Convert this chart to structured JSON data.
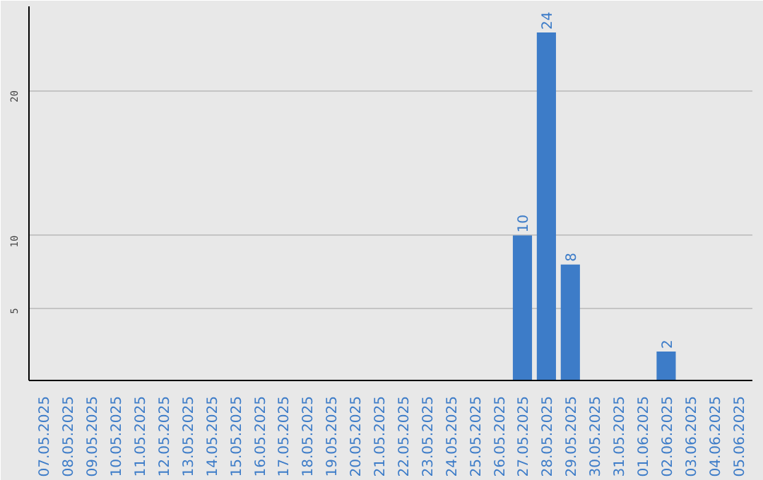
{
  "chart_data": {
    "type": "bar",
    "categories": [
      "07.05.2025",
      "08.05.2025",
      "09.05.2025",
      "10.05.2025",
      "11.05.2025",
      "12.05.2025",
      "13.05.2025",
      "14.05.2025",
      "15.05.2025",
      "16.05.2025",
      "17.05.2025",
      "18.05.2025",
      "19.05.2025",
      "20.05.2025",
      "21.05.2025",
      "22.05.2025",
      "23.05.2025",
      "24.05.2025",
      "25.05.2025",
      "26.05.2025",
      "27.05.2025",
      "28.05.2025",
      "29.05.2025",
      "30.05.2025",
      "31.05.2025",
      "01.06.2025",
      "02.06.2025",
      "03.06.2025",
      "04.06.2025",
      "05.06.2025"
    ],
    "values": [
      0,
      0,
      0,
      0,
      0,
      0,
      0,
      0,
      0,
      0,
      0,
      0,
      0,
      0,
      0,
      0,
      0,
      0,
      0,
      0,
      10,
      24,
      8,
      0,
      0,
      0,
      2,
      0,
      0,
      0
    ],
    "value_labels": [
      null,
      null,
      null,
      null,
      null,
      null,
      null,
      null,
      null,
      null,
      null,
      null,
      null,
      null,
      null,
      null,
      null,
      null,
      null,
      null,
      "10",
      "24",
      "8",
      null,
      null,
      null,
      "2",
      null,
      null,
      null
    ],
    "color": "#3d7cc8",
    "ylim": [
      0,
      25.8
    ],
    "yticks": [
      5,
      10,
      20
    ],
    "grid": "y"
  }
}
